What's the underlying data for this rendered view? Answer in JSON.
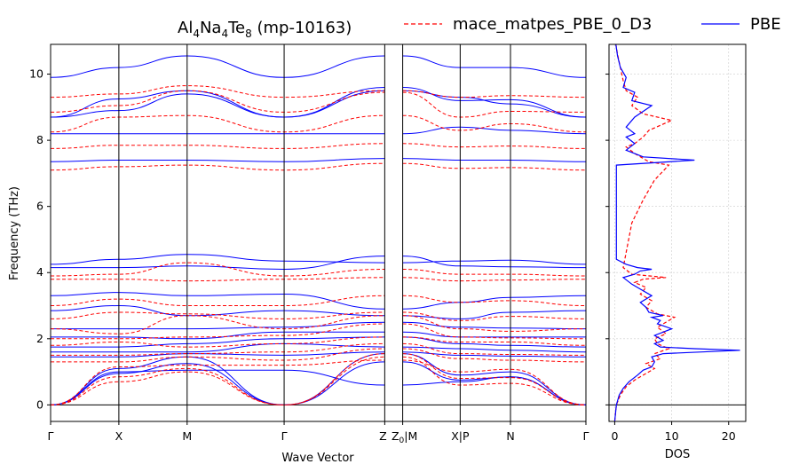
{
  "chart_data": [
    {
      "type": "line",
      "title_main": "Al",
      "title_sub1": "4",
      "title_mid1": "Na",
      "title_sub2": "4",
      "title_mid2": "Te",
      "title_sub3": "8",
      "title_tail": " (mp-10163)",
      "xlabel": "Wave Vector",
      "ylabel": "Frequency (THz)",
      "ylim": [
        -0.5,
        10.9
      ],
      "yticks": [
        0,
        2,
        4,
        6,
        8,
        10
      ],
      "k_path": [
        "Γ",
        "X",
        "M",
        "Γ",
        "Z",
        "Z0|M",
        "X|P",
        "N",
        "Γ"
      ],
      "k_positions": [
        0,
        0.95,
        1.9,
        3.25,
        4.65,
        4.9,
        5.7,
        6.4,
        7.45
      ],
      "legend": {
        "placement": "top",
        "entries": [
          "mace_matpes_PBE_0_D3",
          "PBE"
        ]
      },
      "series": [
        {
          "name": "PBE",
          "color": "#0000ff",
          "style": "solid",
          "bands": [
            [
              0.0,
              1.0,
              1.05,
              1.05,
              0.6,
              0.7
            ],
            [
              0.0,
              0.95,
              1.25,
              0.0,
              1.3,
              0.75
            ],
            [
              0.0,
              1.1,
              1.45,
              0.0,
              1.55,
              0.9
            ],
            [
              1.45,
              1.45,
              1.55,
              1.5,
              1.6,
              1.5
            ],
            [
              1.6,
              1.6,
              1.6,
              1.85,
              1.75,
              1.7
            ],
            [
              1.75,
              1.75,
              1.85,
              2.0,
              2.05,
              1.85
            ],
            [
              2.05,
              2.05,
              2.0,
              2.2,
              2.2,
              2.05
            ],
            [
              2.3,
              2.3,
              2.3,
              2.35,
              2.5,
              2.35
            ],
            [
              2.85,
              3.0,
              2.7,
              2.85,
              2.7,
              2.6
            ],
            [
              3.3,
              3.4,
              3.3,
              3.35,
              2.9,
              3.1
            ],
            [
              4.15,
              4.15,
              4.2,
              4.1,
              4.5,
              4.2
            ],
            [
              4.25,
              4.4,
              4.55,
              4.35,
              4.3,
              4.35
            ],
            [
              7.35,
              7.4,
              7.4,
              7.35,
              7.45,
              7.4
            ],
            [
              8.2,
              8.2,
              8.2,
              8.2,
              8.2,
              8.4
            ],
            [
              8.7,
              8.9,
              9.4,
              8.7,
              9.5,
              9.3
            ],
            [
              8.7,
              9.25,
              9.5,
              8.7,
              9.6,
              9.2
            ],
            [
              9.9,
              10.2,
              10.55,
              9.9,
              10.55,
              10.2
            ]
          ]
        },
        {
          "name": "mace_matpes_PBE_0_D3",
          "color": "#ff0000",
          "style": "dashed",
          "bands": [
            [
              0.0,
              0.7,
              1.0,
              0.0,
              1.45,
              0.6
            ],
            [
              0.0,
              0.85,
              1.1,
              0.0,
              1.55,
              0.8
            ],
            [
              0.0,
              1.15,
              1.2,
              1.2,
              1.35,
              1.0
            ],
            [
              1.3,
              1.3,
              1.45,
              1.35,
              1.7,
              1.4
            ],
            [
              1.5,
              1.5,
              1.55,
              1.6,
              1.85,
              1.55
            ],
            [
              1.8,
              1.9,
              1.75,
              1.85,
              2.05,
              1.9
            ],
            [
              2.0,
              2.0,
              2.05,
              2.1,
              2.45,
              2.05
            ],
            [
              2.3,
              2.15,
              2.7,
              2.3,
              2.7,
              2.3
            ],
            [
              2.6,
              2.8,
              2.75,
              2.6,
              2.8,
              2.55
            ],
            [
              3.0,
              3.2,
              3.0,
              3.0,
              3.3,
              3.1
            ],
            [
              3.8,
              3.8,
              3.75,
              3.8,
              3.85,
              3.75
            ],
            [
              3.9,
              3.95,
              4.3,
              3.9,
              4.1,
              3.95
            ],
            [
              7.1,
              7.2,
              7.25,
              7.1,
              7.3,
              7.15
            ],
            [
              7.75,
              7.85,
              7.85,
              7.75,
              7.9,
              7.8
            ],
            [
              8.25,
              8.7,
              8.75,
              8.25,
              8.75,
              8.3
            ],
            [
              8.85,
              9.05,
              9.5,
              8.85,
              9.45,
              8.7
            ],
            [
              9.3,
              9.4,
              9.65,
              9.3,
              9.5,
              9.3
            ]
          ]
        }
      ]
    },
    {
      "type": "line",
      "xlabel": "DOS",
      "xlim": [
        -1,
        23
      ],
      "xticks": [
        0,
        10,
        20
      ],
      "ylim": [
        -0.5,
        10.9
      ],
      "series": [
        {
          "name": "PBE",
          "color": "#0000ff",
          "style": "solid",
          "points": [
            [
              0,
              -0.5
            ],
            [
              0.3,
              0.0
            ],
            [
              0.8,
              0.3
            ],
            [
              1.5,
              0.5
            ],
            [
              2.5,
              0.7
            ],
            [
              4,
              0.9
            ],
            [
              5,
              1.05
            ],
            [
              6.5,
              1.15
            ],
            [
              7,
              1.3
            ],
            [
              6.5,
              1.45
            ],
            [
              8.5,
              1.55
            ],
            [
              22,
              1.65
            ],
            [
              14,
              1.7
            ],
            [
              8,
              1.75
            ],
            [
              7,
              1.85
            ],
            [
              8.5,
              1.95
            ],
            [
              7,
              2.1
            ],
            [
              10,
              2.3
            ],
            [
              7.5,
              2.45
            ],
            [
              8,
              2.55
            ],
            [
              6.5,
              2.65
            ],
            [
              8.5,
              2.7
            ],
            [
              6,
              2.8
            ],
            [
              5.5,
              2.95
            ],
            [
              4.5,
              3.1
            ],
            [
              6.5,
              3.3
            ],
            [
              4.5,
              3.5
            ],
            [
              3,
              3.65
            ],
            [
              1.5,
              3.85
            ],
            [
              3.5,
              3.95
            ],
            [
              4.5,
              4.05
            ],
            [
              6.5,
              4.1
            ],
            [
              4,
              4.15
            ],
            [
              2,
              4.25
            ],
            [
              0.3,
              4.4
            ],
            [
              0.3,
              6.8
            ],
            [
              0.3,
              7.25
            ],
            [
              14,
              7.4
            ],
            [
              5,
              7.5
            ],
            [
              2,
              7.7
            ],
            [
              3.5,
              7.9
            ],
            [
              2,
              8.1
            ],
            [
              3.5,
              8.2
            ],
            [
              2,
              8.4
            ],
            [
              3.5,
              8.7
            ],
            [
              6.5,
              9.05
            ],
            [
              3,
              9.2
            ],
            [
              3.5,
              9.45
            ],
            [
              1.5,
              9.6
            ],
            [
              2,
              9.9
            ],
            [
              1,
              10.2
            ],
            [
              0.5,
              10.55
            ],
            [
              0.2,
              10.9
            ]
          ]
        },
        {
          "name": "mace_matpes_PBE_0_D3",
          "color": "#ff0000",
          "style": "dashed",
          "points": [
            [
              0,
              -0.5
            ],
            [
              0.3,
              0.0
            ],
            [
              1,
              0.3
            ],
            [
              2,
              0.55
            ],
            [
              3.5,
              0.75
            ],
            [
              5.5,
              0.95
            ],
            [
              7,
              1.1
            ],
            [
              5.5,
              1.25
            ],
            [
              8,
              1.4
            ],
            [
              7,
              1.55
            ],
            [
              9.5,
              1.7
            ],
            [
              7.5,
              1.85
            ],
            [
              7,
              2.0
            ],
            [
              9,
              2.15
            ],
            [
              7.5,
              2.35
            ],
            [
              10.5,
              2.65
            ],
            [
              7.5,
              2.75
            ],
            [
              5.5,
              2.95
            ],
            [
              6.5,
              3.15
            ],
            [
              4.5,
              3.35
            ],
            [
              5.5,
              3.55
            ],
            [
              3.5,
              3.7
            ],
            [
              5,
              3.8
            ],
            [
              9,
              3.85
            ],
            [
              3,
              3.95
            ],
            [
              1.5,
              4.15
            ],
            [
              3,
              5.5
            ],
            [
              5,
              6.2
            ],
            [
              7,
              6.8
            ],
            [
              9.5,
              7.25
            ],
            [
              6,
              7.35
            ],
            [
              3.5,
              7.6
            ],
            [
              2,
              7.8
            ],
            [
              3.5,
              7.9
            ],
            [
              5,
              8.1
            ],
            [
              6,
              8.3
            ],
            [
              10,
              8.6
            ],
            [
              5,
              8.8
            ],
            [
              3,
              9.05
            ],
            [
              4,
              9.3
            ],
            [
              2,
              9.5
            ],
            [
              1.5,
              9.8
            ],
            [
              1,
              10.2
            ],
            [
              0.5,
              10.6
            ],
            [
              0.2,
              10.9
            ]
          ]
        }
      ]
    }
  ]
}
